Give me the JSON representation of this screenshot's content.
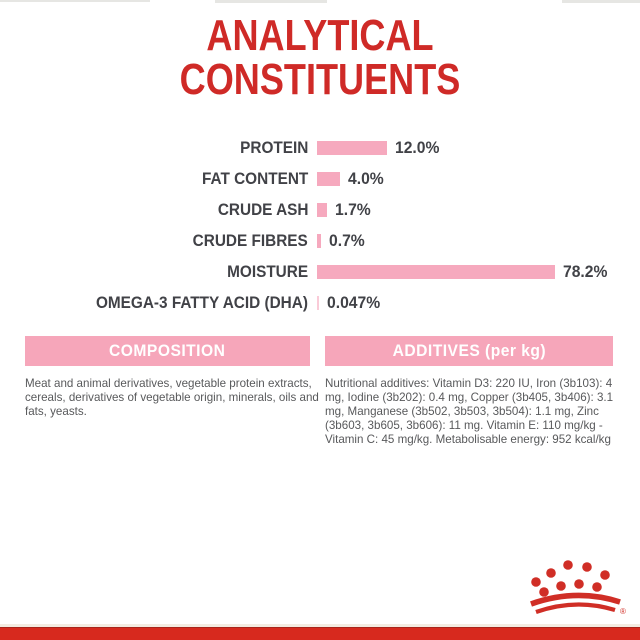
{
  "page": {
    "title_line1": "ANALYTICAL",
    "title_line2": "CONSTITUENTS"
  },
  "chart_data": {
    "type": "bar",
    "orientation": "horizontal",
    "title": "ANALYTICAL CONSTITUENTS",
    "categories": [
      "PROTEIN",
      "FAT CONTENT",
      "CRUDE ASH",
      "CRUDE FIBRES",
      "MOISTURE",
      "OMEGA-3 FATTY ACID (DHA)"
    ],
    "values": [
      12.0,
      4.0,
      1.7,
      0.7,
      78.2,
      0.047
    ],
    "value_labels": [
      "12.0%",
      "4.0%",
      "1.7%",
      "0.7%",
      "78.2%",
      "0.047%"
    ],
    "unit": "%",
    "xlabel": "",
    "ylabel": "",
    "grid": false,
    "legend": false,
    "xlim": [
      0,
      80
    ]
  },
  "sections": {
    "composition": {
      "header": "COMPOSITION",
      "body": "Meat and animal derivatives, vegetable protein extracts, cereals, derivatives of vegetable origin, minerals, oils and fats, yeasts."
    },
    "additives": {
      "header": "ADDITIVES (per kg)",
      "body": "Nutritional additives: Vitamin D3: 220 IU, Iron (3b103): 4 mg, Iodine (3b202): 0.4 mg, Copper (3b405, 3b406): 3.1 mg, Manganese (3b502, 3b503, 3b504): 1.1 mg, Zinc (3b603, 3b605, 3b606): 11 mg. Vitamin E: 110 mg/kg - Vitamin C: 45 mg/kg. Metabolisable energy: 952 kcal/kg"
    }
  },
  "branding": {
    "logo": "royal-canin-crown",
    "registered_mark": "®"
  },
  "colors": {
    "brand_red": "#cf2a27",
    "bar_pink": "#f6a9be",
    "header_pink": "#f6a6ba",
    "label_dark": "#414247",
    "body_gray": "#58595b",
    "bottom_bar_red": "#d7291e",
    "crown_red": "#d02e26"
  }
}
